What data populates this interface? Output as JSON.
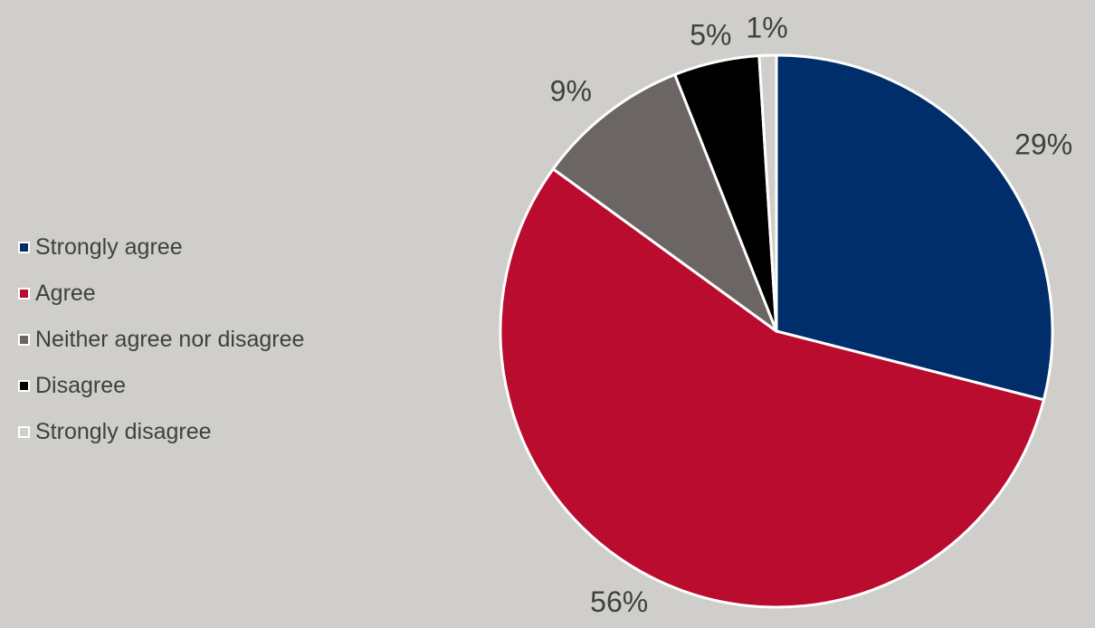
{
  "chart_data": {
    "type": "pie",
    "title": "",
    "series": [
      {
        "categories": [
          "Strongly agree",
          "Agree",
          "Neither agree nor disagree",
          "Disagree",
          "Strongly disagree"
        ],
        "values": [
          29,
          56,
          9,
          5,
          1
        ],
        "labels": [
          "29%",
          "56%",
          "9%",
          "5%",
          "1%"
        ],
        "colors": [
          "#002e6b",
          "#ba0c2f",
          "#6b6563",
          "#000000",
          "#d0cecb"
        ]
      }
    ],
    "legend_position": "left",
    "background": "#d0cecb",
    "slice_border_color": "#ffffff"
  }
}
